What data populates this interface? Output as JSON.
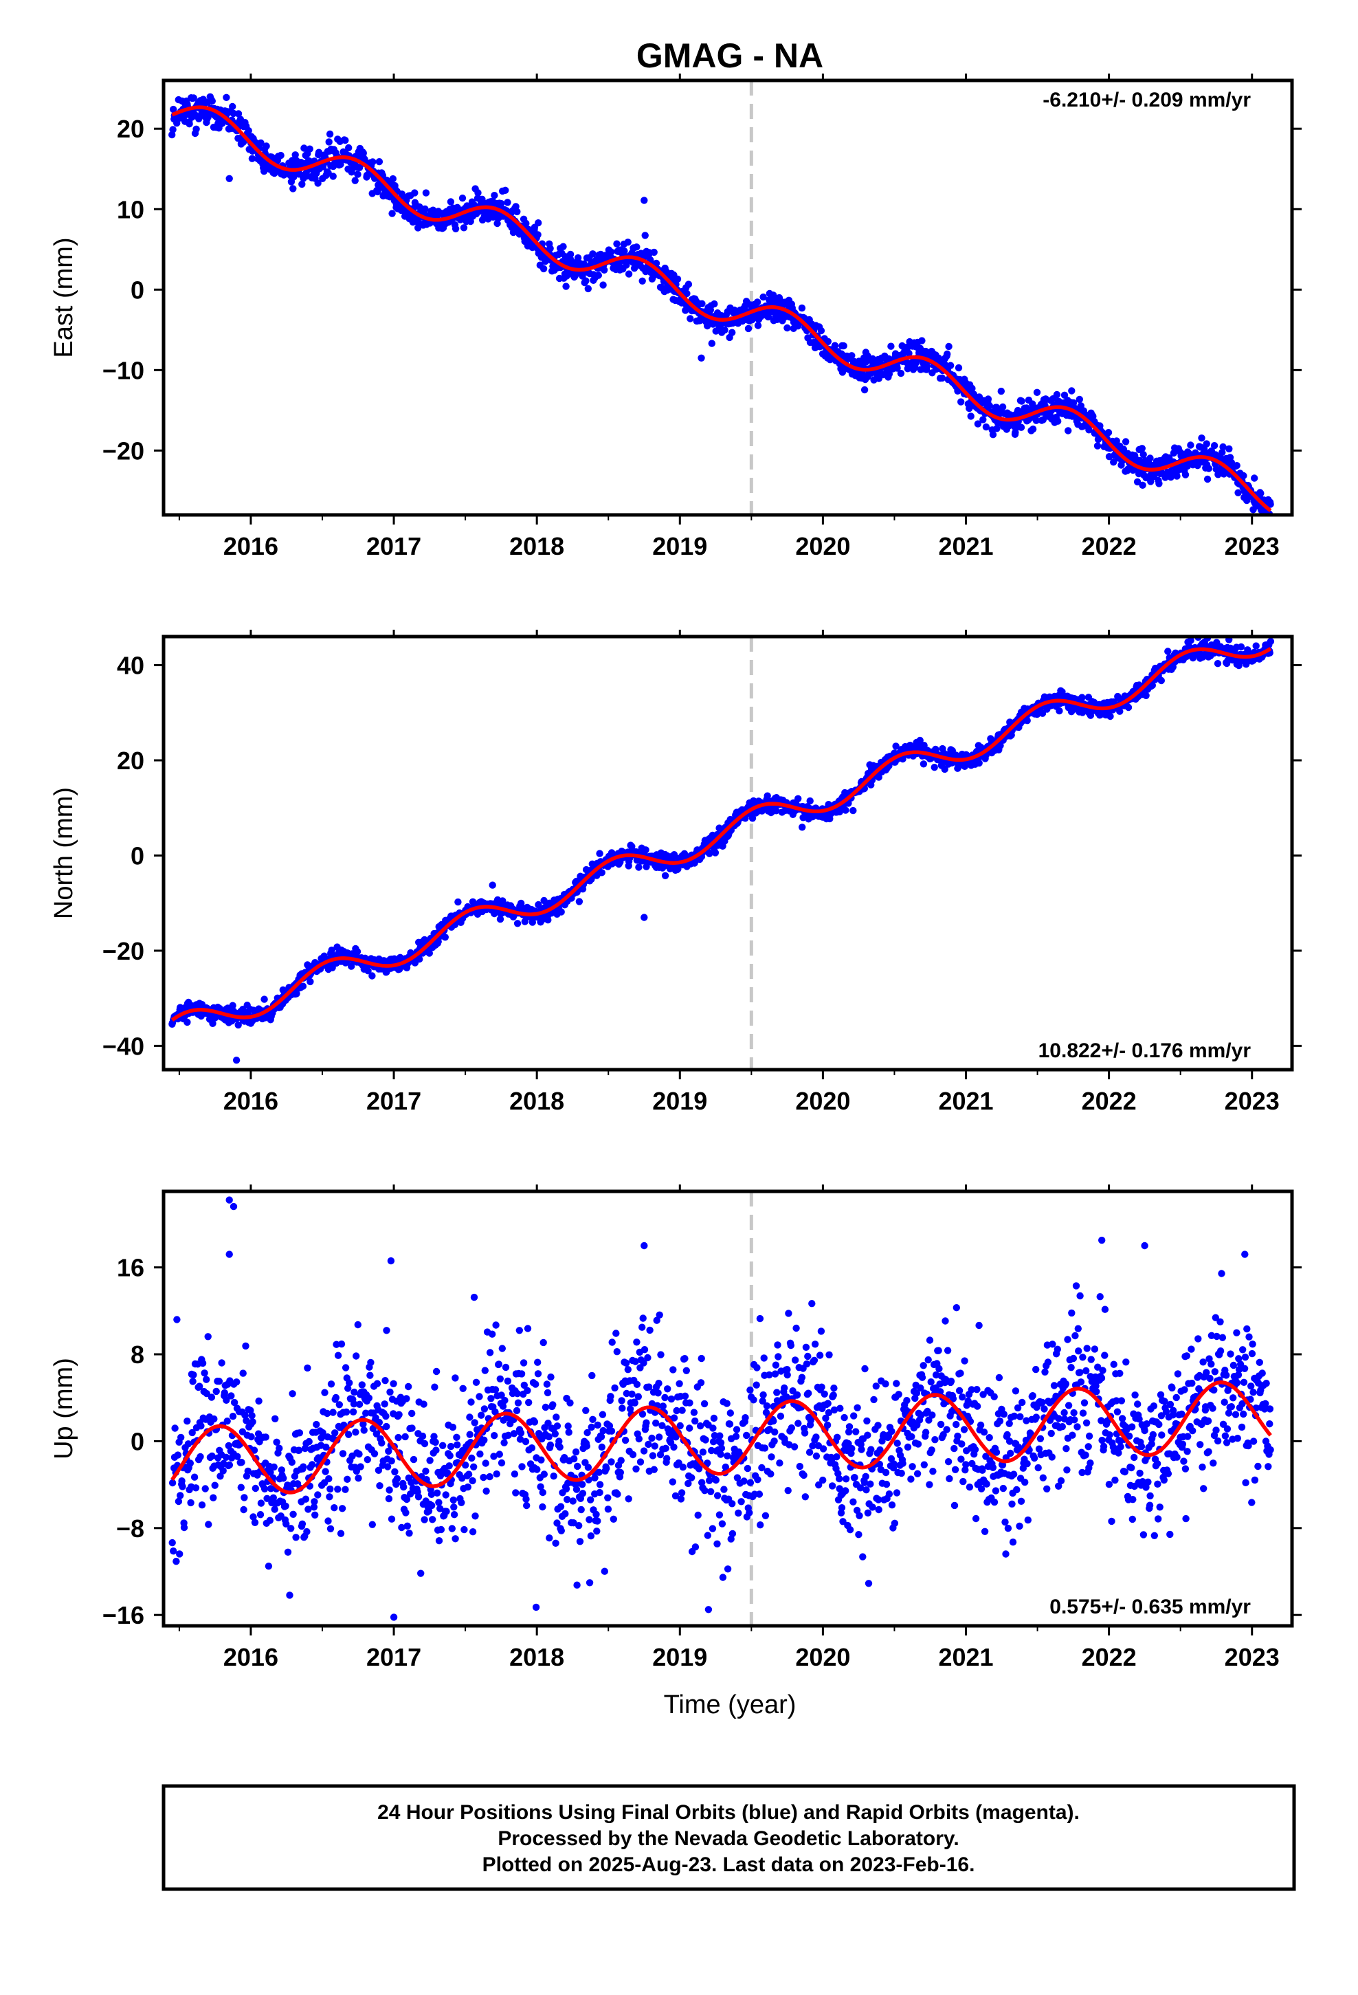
{
  "title": "GMAG - NA",
  "xlabel": "Time (year)",
  "colors": {
    "final_orbit_points": "#0000ff",
    "model_fit": "#ff0000",
    "break_line": "#c8c8c8",
    "frame": "#000000"
  },
  "footer": {
    "line1": "24 Hour Positions Using Final Orbits (blue) and Rapid Orbits (magenta).",
    "line2": "Processed by the Nevada Geodetic Laboratory.",
    "line3": "Plotted on 2025-Aug-23. Last data on 2023-Feb-16."
  },
  "chart_data": [
    {
      "type": "scatter",
      "ylabel": "East (mm)",
      "rate_label": "-6.210+/- 0.209 mm/yr",
      "rate_position": "top-right",
      "xlim": [
        2015.39,
        2023.28
      ],
      "ylim": [
        -28,
        26
      ],
      "xticks": [
        2016,
        2017,
        2018,
        2019,
        2020,
        2021,
        2022,
        2023
      ],
      "xtick_labels": [
        "2016",
        "2017",
        "2018",
        "2019",
        "2020",
        "2021",
        "2022",
        "2023"
      ],
      "yticks": [
        -20,
        -10,
        0,
        10,
        20
      ],
      "ytick_labels": [
        "−20",
        "−10",
        "0",
        "10",
        "20"
      ],
      "break_x": 2019.5,
      "model": {
        "t0": 2015.45,
        "t1": 2023.13,
        "intercept": 22.0,
        "rate": -6.21,
        "annual_amplitude": 2.1,
        "annual_peak": 2015.72,
        "offset_at_break": 0.0
      },
      "scatter": {
        "noise_mm": 0.9,
        "outliers": [
          [
            2015.85,
            13.8
          ],
          [
            2018.75,
            11.1
          ],
          [
            2019.15,
            -8.5
          ]
        ]
      },
      "grid": false
    },
    {
      "type": "scatter",
      "ylabel": "North (mm)",
      "rate_label": "10.822+/- 0.176 mm/yr",
      "rate_position": "bottom-right",
      "xlim": [
        2015.39,
        2023.28
      ],
      "ylim": [
        -45,
        46
      ],
      "xticks": [
        2016,
        2017,
        2018,
        2019,
        2020,
        2021,
        2022,
        2023
      ],
      "xtick_labels": [
        "2016",
        "2017",
        "2018",
        "2019",
        "2020",
        "2021",
        "2022",
        "2023"
      ],
      "yticks": [
        -40,
        -20,
        0,
        20,
        40
      ],
      "ytick_labels": [
        "−40",
        "−20",
        "0",
        "20",
        "40"
      ],
      "break_x": 2019.5,
      "model": {
        "t0": 2015.45,
        "t1": 2023.13,
        "intercept": -37.0,
        "rate": 10.822,
        "annual_amplitude": 3.0,
        "annual_peak": 2015.55,
        "offset_at_break": 0.0
      },
      "scatter": {
        "noise_mm": 0.9,
        "outliers": [
          [
            2015.9,
            -43.0
          ],
          [
            2018.75,
            -13.0
          ]
        ]
      },
      "grid": false
    },
    {
      "type": "scatter",
      "ylabel": "Up (mm)",
      "rate_label": "0.575+/- 0.635 mm/yr",
      "rate_position": "bottom-right",
      "xlim": [
        2015.39,
        2023.28
      ],
      "ylim": [
        -17,
        23
      ],
      "xticks": [
        2016,
        2017,
        2018,
        2019,
        2020,
        2021,
        2022,
        2023
      ],
      "xtick_labels": [
        "2016",
        "2017",
        "2018",
        "2019",
        "2020",
        "2021",
        "2022",
        "2023"
      ],
      "yticks": [
        -16,
        -8,
        0,
        8,
        16
      ],
      "ytick_labels": [
        "−16",
        "−8",
        "0",
        "8",
        "16"
      ],
      "break_x": 2019.5,
      "model": {
        "t0": 2015.45,
        "t1": 2023.13,
        "intercept": -2.0,
        "rate": 0.575,
        "annual_amplitude": 3.2,
        "annual_peak": 2015.78,
        "offset_at_break": 0.0
      },
      "scatter": {
        "noise_mm": 3.6,
        "outliers": [
          [
            2015.85,
            22.2
          ],
          [
            2015.88,
            21.6
          ],
          [
            2015.85,
            17.2
          ],
          [
            2016.98,
            16.6
          ],
          [
            2018.75,
            18.0
          ],
          [
            2021.95,
            18.5
          ],
          [
            2022.25,
            18.0
          ],
          [
            2022.95,
            17.2
          ],
          [
            2017.0,
            -16.2
          ],
          [
            2019.2,
            -15.5
          ]
        ]
      },
      "grid": false
    }
  ]
}
